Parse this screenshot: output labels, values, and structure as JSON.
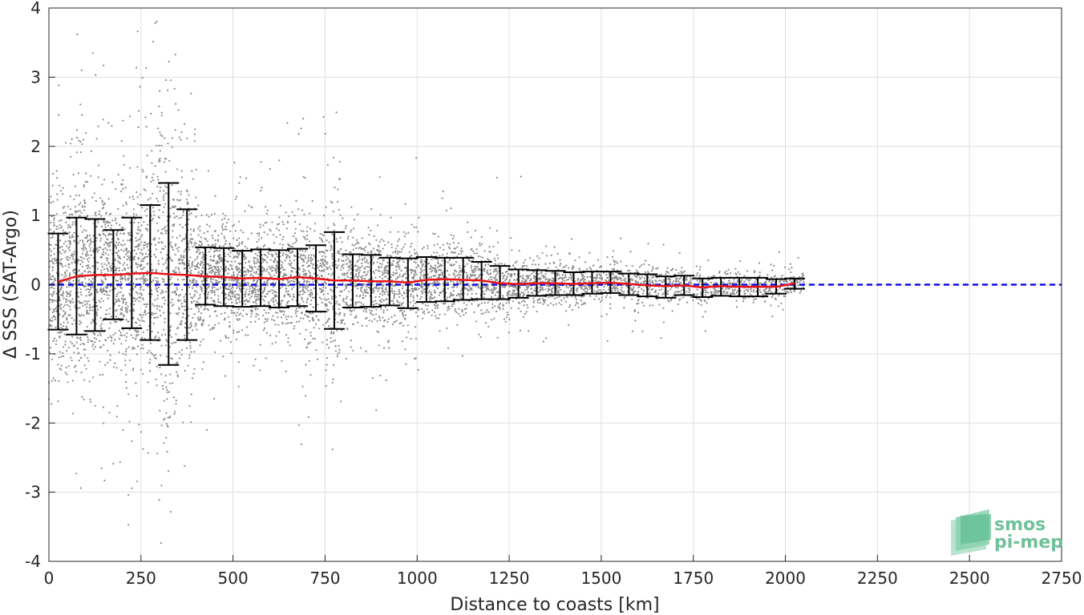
{
  "chart_data": {
    "type": "scatter",
    "xlabel": "Distance to coasts [km]",
    "ylabel": "Δ SSS (SAT-Argo)",
    "xlim": [
      0,
      2750
    ],
    "ylim": [
      -4,
      4
    ],
    "x_ticks": [
      0,
      250,
      500,
      750,
      1000,
      1250,
      1500,
      1750,
      2000,
      2250,
      2500,
      2750
    ],
    "y_ticks": [
      -4,
      -3,
      -2,
      -1,
      0,
      1,
      2,
      3,
      4
    ],
    "x_tick_labels": [
      "0",
      "250",
      "500",
      "750",
      "1000",
      "1250",
      "1500",
      "1750",
      "2000",
      "2250",
      "2500",
      "2750"
    ],
    "y_tick_labels": [
      "-4",
      "-3",
      "-2",
      "-1",
      "0",
      "1",
      "2",
      "3",
      "4"
    ],
    "grid": true,
    "scatter_color": "#8c8c8c",
    "mean_line_color": "#e8141a",
    "zero_line_color": "#1010e0",
    "errorbar_color": "#000000",
    "bins": [
      {
        "x": 25,
        "low": -0.65,
        "high": 0.74,
        "mean": 0.04
      },
      {
        "x": 75,
        "low": -0.72,
        "high": 0.97,
        "mean": 0.12
      },
      {
        "x": 125,
        "low": -0.67,
        "high": 0.95,
        "mean": 0.14
      },
      {
        "x": 175,
        "low": -0.5,
        "high": 0.79,
        "mean": 0.14
      },
      {
        "x": 225,
        "low": -0.63,
        "high": 0.97,
        "mean": 0.16
      },
      {
        "x": 275,
        "low": -0.8,
        "high": 1.15,
        "mean": 0.17
      },
      {
        "x": 325,
        "low": -1.16,
        "high": 1.47,
        "mean": 0.15
      },
      {
        "x": 375,
        "low": -0.8,
        "high": 1.09,
        "mean": 0.14
      },
      {
        "x": 425,
        "low": -0.29,
        "high": 0.54,
        "mean": 0.12
      },
      {
        "x": 475,
        "low": -0.31,
        "high": 0.53,
        "mean": 0.11
      },
      {
        "x": 525,
        "low": -0.32,
        "high": 0.49,
        "mean": 0.09
      },
      {
        "x": 575,
        "low": -0.31,
        "high": 0.51,
        "mean": 0.1
      },
      {
        "x": 625,
        "low": -0.33,
        "high": 0.5,
        "mean": 0.08
      },
      {
        "x": 675,
        "low": -0.31,
        "high": 0.52,
        "mean": 0.11
      },
      {
        "x": 725,
        "low": -0.39,
        "high": 0.57,
        "mean": 0.09
      },
      {
        "x": 775,
        "low": -0.64,
        "high": 0.76,
        "mean": 0.06
      },
      {
        "x": 825,
        "low": -0.33,
        "high": 0.44,
        "mean": 0.06
      },
      {
        "x": 875,
        "low": -0.32,
        "high": 0.43,
        "mean": 0.05
      },
      {
        "x": 925,
        "low": -0.3,
        "high": 0.39,
        "mean": 0.05
      },
      {
        "x": 975,
        "low": -0.34,
        "high": 0.38,
        "mean": 0.03
      },
      {
        "x": 1025,
        "low": -0.25,
        "high": 0.4,
        "mean": 0.07
      },
      {
        "x": 1075,
        "low": -0.24,
        "high": 0.39,
        "mean": 0.08
      },
      {
        "x": 1125,
        "low": -0.22,
        "high": 0.39,
        "mean": 0.07
      },
      {
        "x": 1175,
        "low": -0.21,
        "high": 0.33,
        "mean": 0.06
      },
      {
        "x": 1225,
        "low": -0.21,
        "high": 0.27,
        "mean": 0.02
      },
      {
        "x": 1275,
        "low": -0.19,
        "high": 0.22,
        "mean": 0.01
      },
      {
        "x": 1325,
        "low": -0.16,
        "high": 0.21,
        "mean": 0.02
      },
      {
        "x": 1375,
        "low": -0.15,
        "high": 0.2,
        "mean": 0.02
      },
      {
        "x": 1425,
        "low": -0.15,
        "high": 0.18,
        "mean": 0.01
      },
      {
        "x": 1475,
        "low": -0.13,
        "high": 0.19,
        "mean": 0.02
      },
      {
        "x": 1525,
        "low": -0.12,
        "high": 0.19,
        "mean": 0.03
      },
      {
        "x": 1575,
        "low": -0.15,
        "high": 0.16,
        "mean": 0.01
      },
      {
        "x": 1625,
        "low": -0.17,
        "high": 0.15,
        "mean": -0.01
      },
      {
        "x": 1675,
        "low": -0.19,
        "high": 0.12,
        "mean": -0.02
      },
      {
        "x": 1725,
        "low": -0.15,
        "high": 0.13,
        "mean": -0.01
      },
      {
        "x": 1775,
        "low": -0.18,
        "high": 0.09,
        "mean": -0.04
      },
      {
        "x": 1825,
        "low": -0.16,
        "high": 0.1,
        "mean": -0.02
      },
      {
        "x": 1875,
        "low": -0.17,
        "high": 0.1,
        "mean": -0.03
      },
      {
        "x": 1925,
        "low": -0.17,
        "high": 0.1,
        "mean": -0.03
      },
      {
        "x": 1975,
        "low": -0.13,
        "high": 0.08,
        "mean": -0.03
      },
      {
        "x": 2025,
        "low": -0.06,
        "high": 0.09,
        "mean": 0.02
      }
    ],
    "zero_line": {
      "y": 0,
      "style": "dashed"
    }
  },
  "logo": {
    "line1": "smos",
    "line2": "pi-mep",
    "color": "#6fc19a"
  }
}
